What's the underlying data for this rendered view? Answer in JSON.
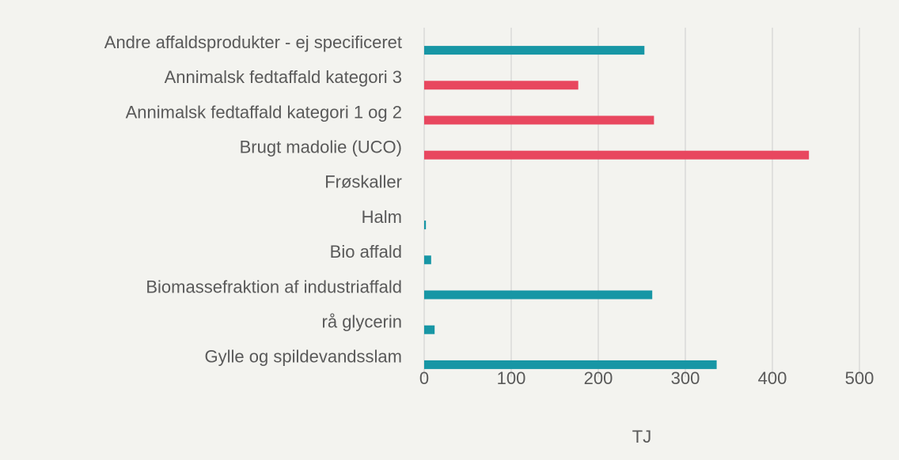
{
  "chart_data": {
    "type": "barh",
    "categories": [
      "Andre affaldsprodukter  - ej specificeret",
      "Annimalsk fedtaffald kategori 3",
      "Annimalsk fedtaffald kategori 1 og 2",
      "Brugt madolie (UCO)",
      "Frøskaller",
      "Halm",
      "Bio affald",
      "Biomassefraktion af industriaffald",
      "rå glycerin",
      "Gylle og spildevandsslam"
    ],
    "values": [
      253,
      177,
      264,
      442,
      0,
      2,
      8,
      262,
      12,
      336
    ],
    "colors": [
      "#1796a5",
      "#e8475f",
      "#e8475f",
      "#e8475f",
      "#1796a5",
      "#1796a5",
      "#1796a5",
      "#1796a5",
      "#1796a5",
      "#1796a5"
    ],
    "xlabel": "TJ",
    "xlim": [
      0,
      500
    ],
    "xticks": [
      0,
      100,
      200,
      300,
      400,
      500
    ],
    "grid": true
  }
}
